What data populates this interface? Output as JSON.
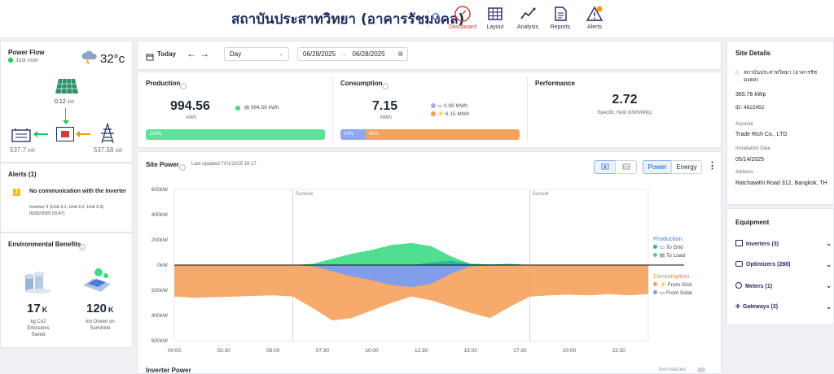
{
  "header": {
    "site_title": "สถาบันประสาทวิทยา (อาคารรัชมงคล)",
    "nav": [
      {
        "label": "Dashboard",
        "icon": "speedometer-icon",
        "active": true
      },
      {
        "label": "Layout",
        "icon": "grid-layout-icon"
      },
      {
        "label": "Analysis",
        "icon": "line-chart-icon"
      },
      {
        "label": "Reports",
        "icon": "document-icon"
      },
      {
        "label": "Alerts",
        "icon": "warning-icon"
      }
    ]
  },
  "power_flow": {
    "title": "Power Flow",
    "status": "Just now",
    "temperature": "32°c",
    "weather_icon": "thunderstorm-cloud-icon",
    "solar_value": "0.12",
    "solar_unit": "kW",
    "load_value": "537.7",
    "load_unit": "kW",
    "grid_value": "537.58",
    "grid_unit": "kW"
  },
  "alerts": {
    "title": "Alerts (1)",
    "badge": "1",
    "item_title": "No communication with the Inverter",
    "item_detail": "Inverter 3 (Unit 3.1, Unit 3.2, Unit 3.3)",
    "item_time": "(6/30/2025 03:47)"
  },
  "environment": {
    "title": "Environmental Benefits",
    "co2_value": "17",
    "co2_unit": "K",
    "co2_label_1": "kg Co2",
    "co2_label_2": "Emissions",
    "co2_label_3": "Saved",
    "km_value": "120",
    "km_unit": "K",
    "km_label_1": "km Driven on",
    "km_label_2": "Sunshine"
  },
  "toolbar": {
    "today_label": "Today",
    "period": "Day",
    "date_from": "06/28/2025",
    "date_to": "06/28/2025",
    "date_sep": "→"
  },
  "summary": {
    "production": {
      "title": "Production",
      "value": "994.56",
      "unit": "kWh",
      "legend_value": "994.56",
      "legend_unit": "kWh",
      "bar_label": "100%",
      "bar_fraction": 1.0
    },
    "consumption": {
      "title": "Consumption",
      "value": "7.15",
      "unit": "MWh",
      "solar_value": "0.99 MWh",
      "grid_value": "6.15 MWh",
      "solar_pct_label": "14%",
      "grid_pct_label": "86%",
      "solar_fraction": 0.14
    },
    "performance": {
      "title": "Performance",
      "value": "2.72",
      "label": "Specific Yield (kWh/kWp)"
    }
  },
  "site_power": {
    "title": "Site Power",
    "updated": "Last updated 7/01/2025 16:17",
    "tab_power": "Power",
    "tab_energy": "Energy",
    "legend_production": "Production",
    "legend_to_grid": "To Grid",
    "legend_to_load": "To Load",
    "legend_consumption": "Consumption",
    "legend_from_grid": "From Grid",
    "legend_from_solar": "From Solar",
    "sunrise": "Sunrise",
    "sunset": "Sunset",
    "next_title": "Inverter Power",
    "normalized": "Normalized",
    "colors": {
      "to_grid": "#1fb5a6",
      "to_load": "#3ddc84",
      "from_grid": "#f5a15c",
      "from_solar": "#7b9cf0"
    }
  },
  "chart_data": {
    "type": "area",
    "x_labels": [
      "00:00",
      "02:30",
      "05:00",
      "07:30",
      "10:00",
      "12:30",
      "15:00",
      "17:30",
      "20:00",
      "22:30"
    ],
    "y_labels": [
      "600kW",
      "400kW",
      "200kW",
      "0kW",
      "200kW",
      "400kW",
      "600kW"
    ],
    "ylim": [
      -600,
      600
    ],
    "x_range_hours": [
      0,
      24
    ],
    "sunrise_hour": 6.0,
    "sunset_hour": 18.0,
    "series": [
      {
        "name": "To Grid",
        "hours": [
          12,
          13,
          14,
          15,
          16,
          17,
          18
        ],
        "values": [
          0,
          20,
          35,
          10,
          5,
          10,
          0
        ]
      },
      {
        "name": "To Load",
        "hours": [
          6,
          7,
          8,
          9,
          10,
          11,
          12,
          13,
          14,
          15,
          16,
          17,
          18
        ],
        "values": [
          0,
          10,
          50,
          90,
          120,
          160,
          175,
          150,
          70,
          10,
          5,
          5,
          0
        ]
      },
      {
        "name": "From Grid",
        "hours": [
          0,
          1,
          2,
          3,
          4,
          5,
          6,
          7,
          8,
          9,
          10,
          11,
          12,
          13,
          14,
          15,
          16,
          17,
          18,
          19,
          20,
          21,
          22,
          23,
          24
        ],
        "values": [
          -250,
          -260,
          -255,
          -250,
          -245,
          -240,
          -250,
          -340,
          -440,
          -420,
          -360,
          -300,
          -250,
          -280,
          -330,
          -380,
          -420,
          -330,
          -250,
          -240,
          -235,
          -240,
          -230,
          -240,
          -230
        ]
      },
      {
        "name": "From Solar",
        "hours": [
          6,
          7,
          8,
          9,
          10,
          11,
          12,
          13,
          14,
          15,
          16,
          17,
          18
        ],
        "values": [
          0,
          -10,
          -50,
          -90,
          -120,
          -160,
          -175,
          -150,
          -70,
          -10,
          -5,
          -5,
          0
        ]
      }
    ]
  },
  "site_details": {
    "title": "Site Details",
    "name": "สถาบันประสาทวิทยา (อาคารรัชมงคล)",
    "capacity": "365.76 kWp",
    "id": "ID: 4622452",
    "account_label": "Account",
    "account": "Trade Rich Co., LTD",
    "install_label": "Installation Date",
    "install_date": "05/14/2025",
    "address_label": "Address",
    "address": "Ratchawithi Road 312, Bangkok, TH"
  },
  "equipment": {
    "title": "Equipment",
    "items": [
      {
        "label": "Inverters",
        "count": "(3)",
        "icon": "inverter-icon"
      },
      {
        "label": "Optimizers",
        "count": "(288)",
        "icon": "optimizer-icon"
      },
      {
        "label": "Meters",
        "count": "(1)",
        "icon": "meter-icon"
      },
      {
        "label": "Gateways",
        "count": "(2)",
        "icon": "gateway-icon"
      }
    ]
  }
}
